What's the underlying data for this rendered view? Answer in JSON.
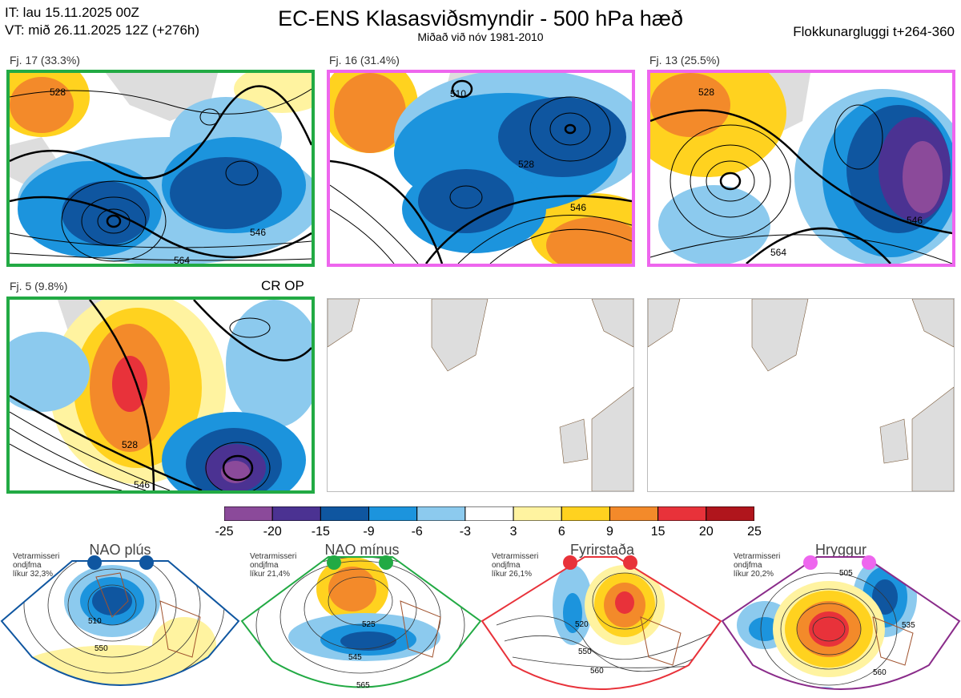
{
  "header": {
    "it_line": "IT: lau 15.11.2025 00Z",
    "vt_line": "VT: mið 26.11.2025 12Z  (+276h)",
    "title": "EC-ENS Klasasviðsmyndir - 500 hPa hæð",
    "subtitle": "Miðað við nóv 1981-2010",
    "window": "Flokkunargluggi t+264-360"
  },
  "clusters": [
    {
      "label": "Fj. 17 (33.3%)",
      "border": "#22aa44",
      "contours": [
        "528",
        "546",
        "564"
      ]
    },
    {
      "label": "Fj. 16 (31.4%)",
      "border": "#ee66ee",
      "contours": [
        "510",
        "528",
        "546"
      ]
    },
    {
      "label": "Fj. 13 (25.5%)",
      "border": "#ee66ee",
      "contours": [
        "528",
        "546",
        "564"
      ]
    },
    {
      "label": "Fj. 5 (9.8%)",
      "border": "#22aa44",
      "contours": [
        "528",
        "546"
      ],
      "tag": "CR OP"
    }
  ],
  "colorbar": {
    "ticks": [
      "-25",
      "-20",
      "-15",
      "-9",
      "-6",
      "-3",
      "3",
      "6",
      "9",
      "15",
      "20",
      "25"
    ],
    "colors": [
      "#8b4a9a",
      "#4b3292",
      "#0f56a0",
      "#1c94dd",
      "#8ccaee",
      "#ffffff",
      "#fff3a0",
      "#ffd21f",
      "#f38a2a",
      "#e8323a",
      "#b0151c"
    ]
  },
  "regimes": [
    {
      "name": "NAO plús",
      "prob_lines": [
        "Vetrarmisseri",
        "ondjfma",
        "líkur 32,3%"
      ],
      "color": "#0f56a0",
      "contours": [
        "510",
        "550"
      ]
    },
    {
      "name": "NAO mínus",
      "prob_lines": [
        "Vetrarmisseri",
        "ondjfma",
        "líkur 21,4%"
      ],
      "color": "#22aa44",
      "contours": [
        "525",
        "545",
        "565"
      ]
    },
    {
      "name": "Fyrirstaða",
      "prob_lines": [
        "Vetrarmisseri",
        "ondjfma",
        "líkur 26,1%"
      ],
      "color": "#e8323a",
      "contours": [
        "520",
        "550",
        "560"
      ]
    },
    {
      "name": "Hryggur",
      "prob_lines": [
        "Vetrarmisseri",
        "ondjfma",
        "líkur 20,2%"
      ],
      "color": "#8a2c8a",
      "contours": [
        "505",
        "535",
        "560"
      ]
    }
  ]
}
